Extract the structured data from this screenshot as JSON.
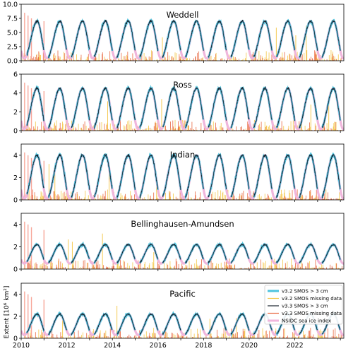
{
  "figure": {
    "ylabel": "Extent [10⁶ km²]",
    "xlabel": "",
    "x_ticks": [
      "2010",
      "2012",
      "2014",
      "2016",
      "2018",
      "2020",
      "2022"
    ]
  },
  "legend": {
    "placement": "bottom-panel top-right",
    "entries": [
      {
        "label": "v3.2 SMOS > 3 cm",
        "color": "#4ec3de",
        "style": "thick-line"
      },
      {
        "label": "v3.2 SMOS missing data",
        "color": "#f4c542",
        "style": "line"
      },
      {
        "label": "v3.3 SMOS > 3 cm",
        "color": "#1b2430",
        "style": "line"
      },
      {
        "label": "v3.3 SMOS missing data",
        "color": "#e8623a",
        "style": "line"
      },
      {
        "label": "NSIDC sea ice index",
        "color": "#f0b6dc",
        "style": "thick-line"
      }
    ]
  },
  "colors": {
    "nsidc": "#f0b6dc",
    "v32": "#4ec3de",
    "v33": "#1b2430",
    "missing_v32": "#f4c542",
    "missing_v33": "#e8623a",
    "missing_salmon": "#f7a79a"
  },
  "chart_data": [
    {
      "type": "line",
      "title": "Weddell",
      "xlim": [
        2010.0,
        2024.15
      ],
      "ylim": [
        0,
        10
      ],
      "yticks": [
        "0.0",
        "2.5",
        "5.0",
        "7.5",
        "10.0"
      ],
      "ytick_values": [
        0,
        2.5,
        5,
        7.5,
        10
      ],
      "seasonal_min": 0.4,
      "seasonal_max": 7.0,
      "series": [
        {
          "name": "NSIDC sea ice index"
        },
        {
          "name": "v3.2 SMOS > 3 cm"
        },
        {
          "name": "v3.3 SMOS > 3 cm"
        },
        {
          "name": "v3.2 SMOS missing data"
        },
        {
          "name": "v3.3 SMOS missing data"
        }
      ]
    },
    {
      "type": "line",
      "title": "Ross",
      "xlim": [
        2010.0,
        2024.15
      ],
      "ylim": [
        0,
        6
      ],
      "yticks": [
        "0",
        "2",
        "4",
        "6"
      ],
      "ytick_values": [
        0,
        2,
        4,
        6
      ],
      "seasonal_min": 0.15,
      "seasonal_max": 4.5,
      "series": [
        {
          "name": "NSIDC sea ice index"
        },
        {
          "name": "v3.2 SMOS > 3 cm"
        },
        {
          "name": "v3.3 SMOS > 3 cm"
        },
        {
          "name": "v3.2 SMOS missing data"
        },
        {
          "name": "v3.3 SMOS missing data"
        }
      ]
    },
    {
      "type": "line",
      "title": "Indian",
      "xlim": [
        2010.0,
        2024.15
      ],
      "ylim": [
        0,
        5
      ],
      "yticks": [
        "0",
        "2",
        "4"
      ],
      "ytick_values": [
        0,
        2,
        4
      ],
      "seasonal_min": 0.1,
      "seasonal_max": 4.0,
      "series": [
        {
          "name": "NSIDC sea ice index"
        },
        {
          "name": "v3.2 SMOS > 3 cm"
        },
        {
          "name": "v3.3 SMOS > 3 cm"
        },
        {
          "name": "v3.2 SMOS missing data"
        },
        {
          "name": "v3.3 SMOS missing data"
        }
      ]
    },
    {
      "type": "line",
      "title": "Bellinghausen-Amundsen",
      "xlim": [
        2010.0,
        2024.15
      ],
      "ylim": [
        0,
        5
      ],
      "yticks": [
        "0",
        "2",
        "4"
      ],
      "ytick_values": [
        0,
        2,
        4
      ],
      "seasonal_min": 0.5,
      "seasonal_max": 2.2,
      "series": [
        {
          "name": "NSIDC sea ice index"
        },
        {
          "name": "v3.2 SMOS > 3 cm"
        },
        {
          "name": "v3.3 SMOS > 3 cm"
        },
        {
          "name": "v3.2 SMOS missing data"
        },
        {
          "name": "v3.3 SMOS missing data"
        }
      ]
    },
    {
      "type": "line",
      "title": "Pacific",
      "xlim": [
        2010.0,
        2024.15
      ],
      "ylim": [
        0,
        5
      ],
      "yticks": [
        "0",
        "2",
        "4"
      ],
      "ytick_values": [
        0,
        2,
        4
      ],
      "seasonal_min": 0.3,
      "seasonal_max": 2.2,
      "series": [
        {
          "name": "NSIDC sea ice index"
        },
        {
          "name": "v3.2 SMOS > 3 cm"
        },
        {
          "name": "v3.3 SMOS > 3 cm"
        },
        {
          "name": "v3.2 SMOS missing data"
        },
        {
          "name": "v3.3 SMOS missing data"
        }
      ]
    }
  ]
}
